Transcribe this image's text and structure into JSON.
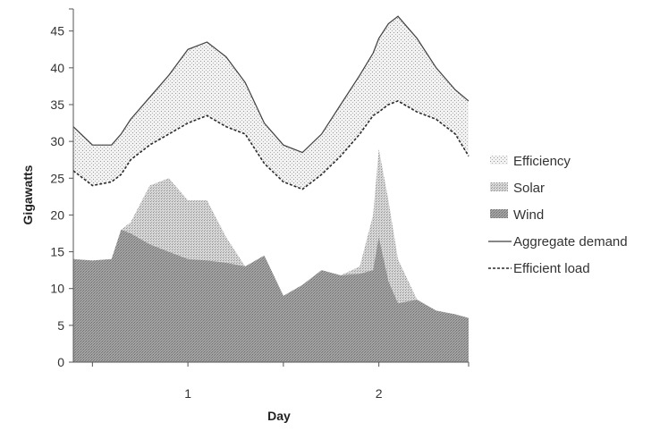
{
  "chart_data": {
    "type": "area",
    "title": "",
    "xlabel": "Day",
    "ylabel": "Gigawatts",
    "ylim": [
      0,
      48
    ],
    "yticks": [
      0,
      5,
      10,
      15,
      20,
      25,
      30,
      35,
      40,
      45
    ],
    "xlim": [
      0.4,
      2.47
    ],
    "xticks": [
      1,
      2
    ],
    "xtick_labels": [
      "1",
      "2"
    ],
    "grid": false,
    "legend_position": "right",
    "x": [
      0.4,
      0.5,
      0.6,
      0.65,
      0.7,
      0.8,
      0.9,
      1.0,
      1.1,
      1.2,
      1.3,
      1.4,
      1.5,
      1.6,
      1.7,
      1.8,
      1.9,
      1.97,
      2.0,
      2.05,
      2.1,
      2.2,
      2.3,
      2.4,
      2.47
    ],
    "series": [
      {
        "name": "Wind",
        "kind": "area",
        "color": "#8a8a8a",
        "values": [
          14.0,
          13.8,
          14.0,
          18.0,
          17.5,
          16.0,
          15.0,
          14.0,
          13.8,
          13.5,
          13.0,
          14.5,
          9.0,
          10.5,
          12.5,
          11.8,
          12.0,
          12.5,
          17.0,
          11.0,
          8.0,
          8.5,
          7.0,
          6.5,
          6.0
        ]
      },
      {
        "name": "Solar",
        "kind": "area",
        "color": "#bdbdbd",
        "values": [
          14.0,
          13.8,
          14.0,
          18.0,
          19.0,
          24.0,
          25.0,
          22.0,
          22.0,
          17.0,
          13.0,
          14.5,
          9.0,
          10.5,
          12.5,
          11.8,
          13.0,
          20.0,
          29.0,
          22.0,
          14.0,
          8.5,
          7.0,
          6.5,
          6.0
        ]
      },
      {
        "name": "Efficiency",
        "kind": "area",
        "color": "#d9d9d9"
      },
      {
        "name": "Aggregate demand",
        "kind": "line",
        "color": "#3a3a3a",
        "values": [
          32.0,
          29.5,
          29.5,
          31.0,
          33.0,
          36.0,
          39.0,
          42.5,
          43.5,
          41.5,
          38.0,
          32.5,
          29.5,
          28.5,
          31.0,
          35.0,
          39.0,
          42.0,
          44.0,
          46.0,
          47.0,
          44.0,
          40.0,
          37.0,
          35.5
        ]
      },
      {
        "name": "Efficient load",
        "kind": "dashed-line",
        "color": "#3a3a3a",
        "values": [
          26.0,
          24.0,
          24.5,
          25.5,
          27.5,
          29.5,
          31.0,
          32.5,
          33.5,
          32.0,
          31.0,
          27.0,
          24.5,
          23.5,
          25.5,
          28.0,
          31.0,
          33.5,
          34.0,
          35.0,
          35.5,
          34.0,
          33.0,
          31.0,
          28.0
        ]
      }
    ]
  }
}
